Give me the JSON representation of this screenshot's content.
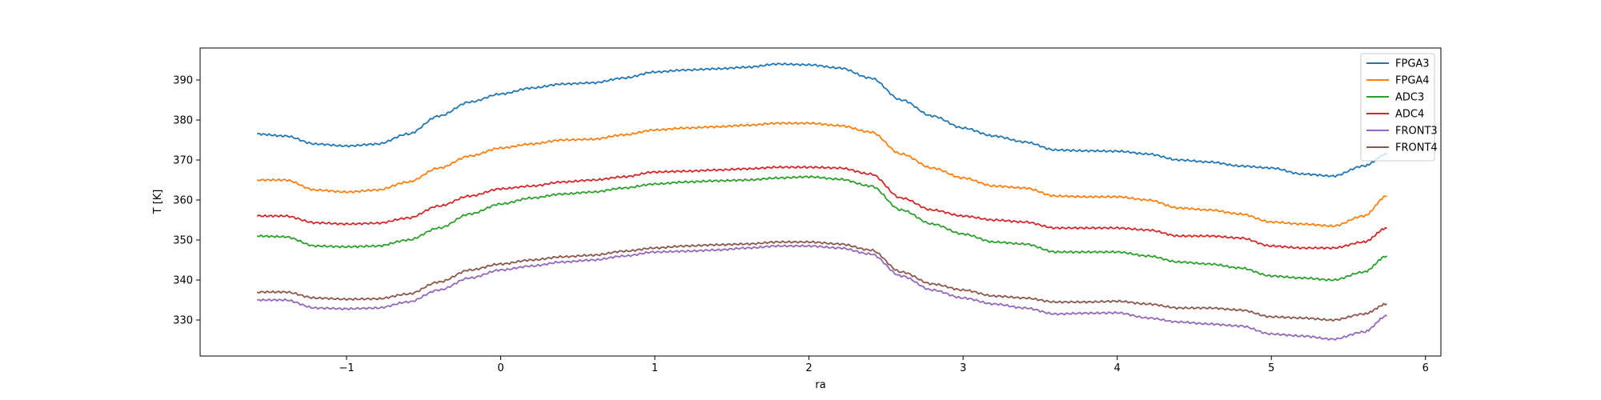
{
  "chart_data": {
    "type": "line",
    "title": "",
    "xlabel": "ra",
    "ylabel": "T [K]",
    "xlim": [
      -1.95,
      6.1
    ],
    "ylim": [
      321,
      398
    ],
    "xticks": [
      -1,
      0,
      1,
      2,
      3,
      4,
      5,
      6
    ],
    "xtick_labels": [
      "−1",
      "0",
      "1",
      "2",
      "3",
      "4",
      "5",
      "6"
    ],
    "yticks": [
      330,
      340,
      350,
      360,
      370,
      380,
      390
    ],
    "ytick_labels": [
      "330",
      "340",
      "350",
      "360",
      "370",
      "380",
      "390"
    ],
    "grid": false,
    "legend_position": "top-right",
    "x": [
      -1.58,
      -1.4,
      -1.2,
      -1.0,
      -0.8,
      -0.6,
      -0.4,
      -0.2,
      0.0,
      0.2,
      0.4,
      0.6,
      0.8,
      1.0,
      1.2,
      1.4,
      1.6,
      1.8,
      2.0,
      2.2,
      2.4,
      2.6,
      2.8,
      3.0,
      3.2,
      3.4,
      3.6,
      3.8,
      4.0,
      4.2,
      4.4,
      4.6,
      4.8,
      5.0,
      5.2,
      5.4,
      5.6,
      5.75
    ],
    "series": [
      {
        "name": "FPGA3",
        "color": "#1f77b4",
        "values": [
          376.5,
          376.0,
          374.0,
          373.5,
          374.0,
          376.5,
          381.0,
          384.5,
          386.5,
          388.0,
          389.0,
          389.3,
          390.5,
          392.0,
          392.5,
          392.8,
          393.2,
          394.0,
          393.8,
          393.0,
          390.5,
          385.0,
          381.0,
          378.0,
          376.0,
          374.5,
          372.5,
          372.3,
          372.2,
          371.5,
          370.0,
          369.5,
          368.5,
          368.0,
          366.5,
          366.0,
          368.5,
          371.5
        ]
      },
      {
        "name": "FPGA4",
        "color": "#ff7f0e",
        "values": [
          365.0,
          365.0,
          362.5,
          362.0,
          362.5,
          364.5,
          368.0,
          371.0,
          373.0,
          374.0,
          375.0,
          375.2,
          376.3,
          377.5,
          378.0,
          378.3,
          378.7,
          379.2,
          379.2,
          378.6,
          377.0,
          371.5,
          368.0,
          365.5,
          363.5,
          363.0,
          361.0,
          360.8,
          360.8,
          360.0,
          358.0,
          357.5,
          356.5,
          354.5,
          354.0,
          353.5,
          356.0,
          361.0
        ]
      },
      {
        "name": "ADC3",
        "color": "#2ca02c",
        "values": [
          351.0,
          350.8,
          348.5,
          348.3,
          348.5,
          350.0,
          353.0,
          356.5,
          359.0,
          360.5,
          361.5,
          362.0,
          363.0,
          364.0,
          364.5,
          364.8,
          365.0,
          365.5,
          365.8,
          365.2,
          363.5,
          357.5,
          354.0,
          351.5,
          349.5,
          349.0,
          347.0,
          347.0,
          347.0,
          346.0,
          344.5,
          344.0,
          343.0,
          341.0,
          340.5,
          340.0,
          342.0,
          346.0
        ]
      },
      {
        "name": "ADC4",
        "color": "#d62728",
        "values": [
          356.0,
          356.0,
          354.3,
          354.0,
          354.2,
          355.5,
          358.5,
          361.0,
          362.8,
          363.5,
          364.5,
          365.0,
          365.8,
          367.0,
          367.2,
          367.5,
          367.8,
          368.2,
          368.2,
          368.0,
          366.5,
          360.5,
          357.5,
          356.0,
          355.0,
          354.5,
          353.0,
          353.0,
          353.0,
          352.5,
          351.0,
          351.0,
          350.5,
          348.5,
          348.0,
          348.0,
          349.5,
          353.0
        ]
      },
      {
        "name": "FRONT3",
        "color": "#9467bd",
        "values": [
          335.0,
          335.0,
          333.0,
          332.8,
          333.0,
          334.5,
          337.5,
          340.5,
          342.5,
          343.5,
          344.5,
          345.0,
          346.0,
          347.0,
          347.2,
          347.5,
          348.0,
          348.5,
          348.5,
          348.0,
          346.5,
          341.0,
          337.5,
          335.5,
          334.0,
          333.0,
          331.5,
          331.7,
          331.8,
          330.5,
          329.5,
          329.0,
          328.5,
          326.5,
          326.0,
          325.2,
          327.0,
          331.0
        ]
      },
      {
        "name": "FRONT4",
        "color": "#8c564b",
        "values": [
          337.0,
          337.0,
          335.5,
          335.2,
          335.3,
          336.5,
          339.5,
          342.5,
          344.0,
          345.0,
          345.8,
          346.2,
          347.2,
          348.0,
          348.5,
          348.8,
          349.0,
          349.5,
          349.5,
          349.0,
          347.5,
          342.0,
          339.0,
          337.5,
          336.0,
          335.5,
          334.5,
          334.5,
          334.7,
          334.0,
          333.0,
          333.0,
          332.5,
          330.8,
          330.5,
          330.0,
          331.5,
          334.0
        ]
      }
    ]
  }
}
